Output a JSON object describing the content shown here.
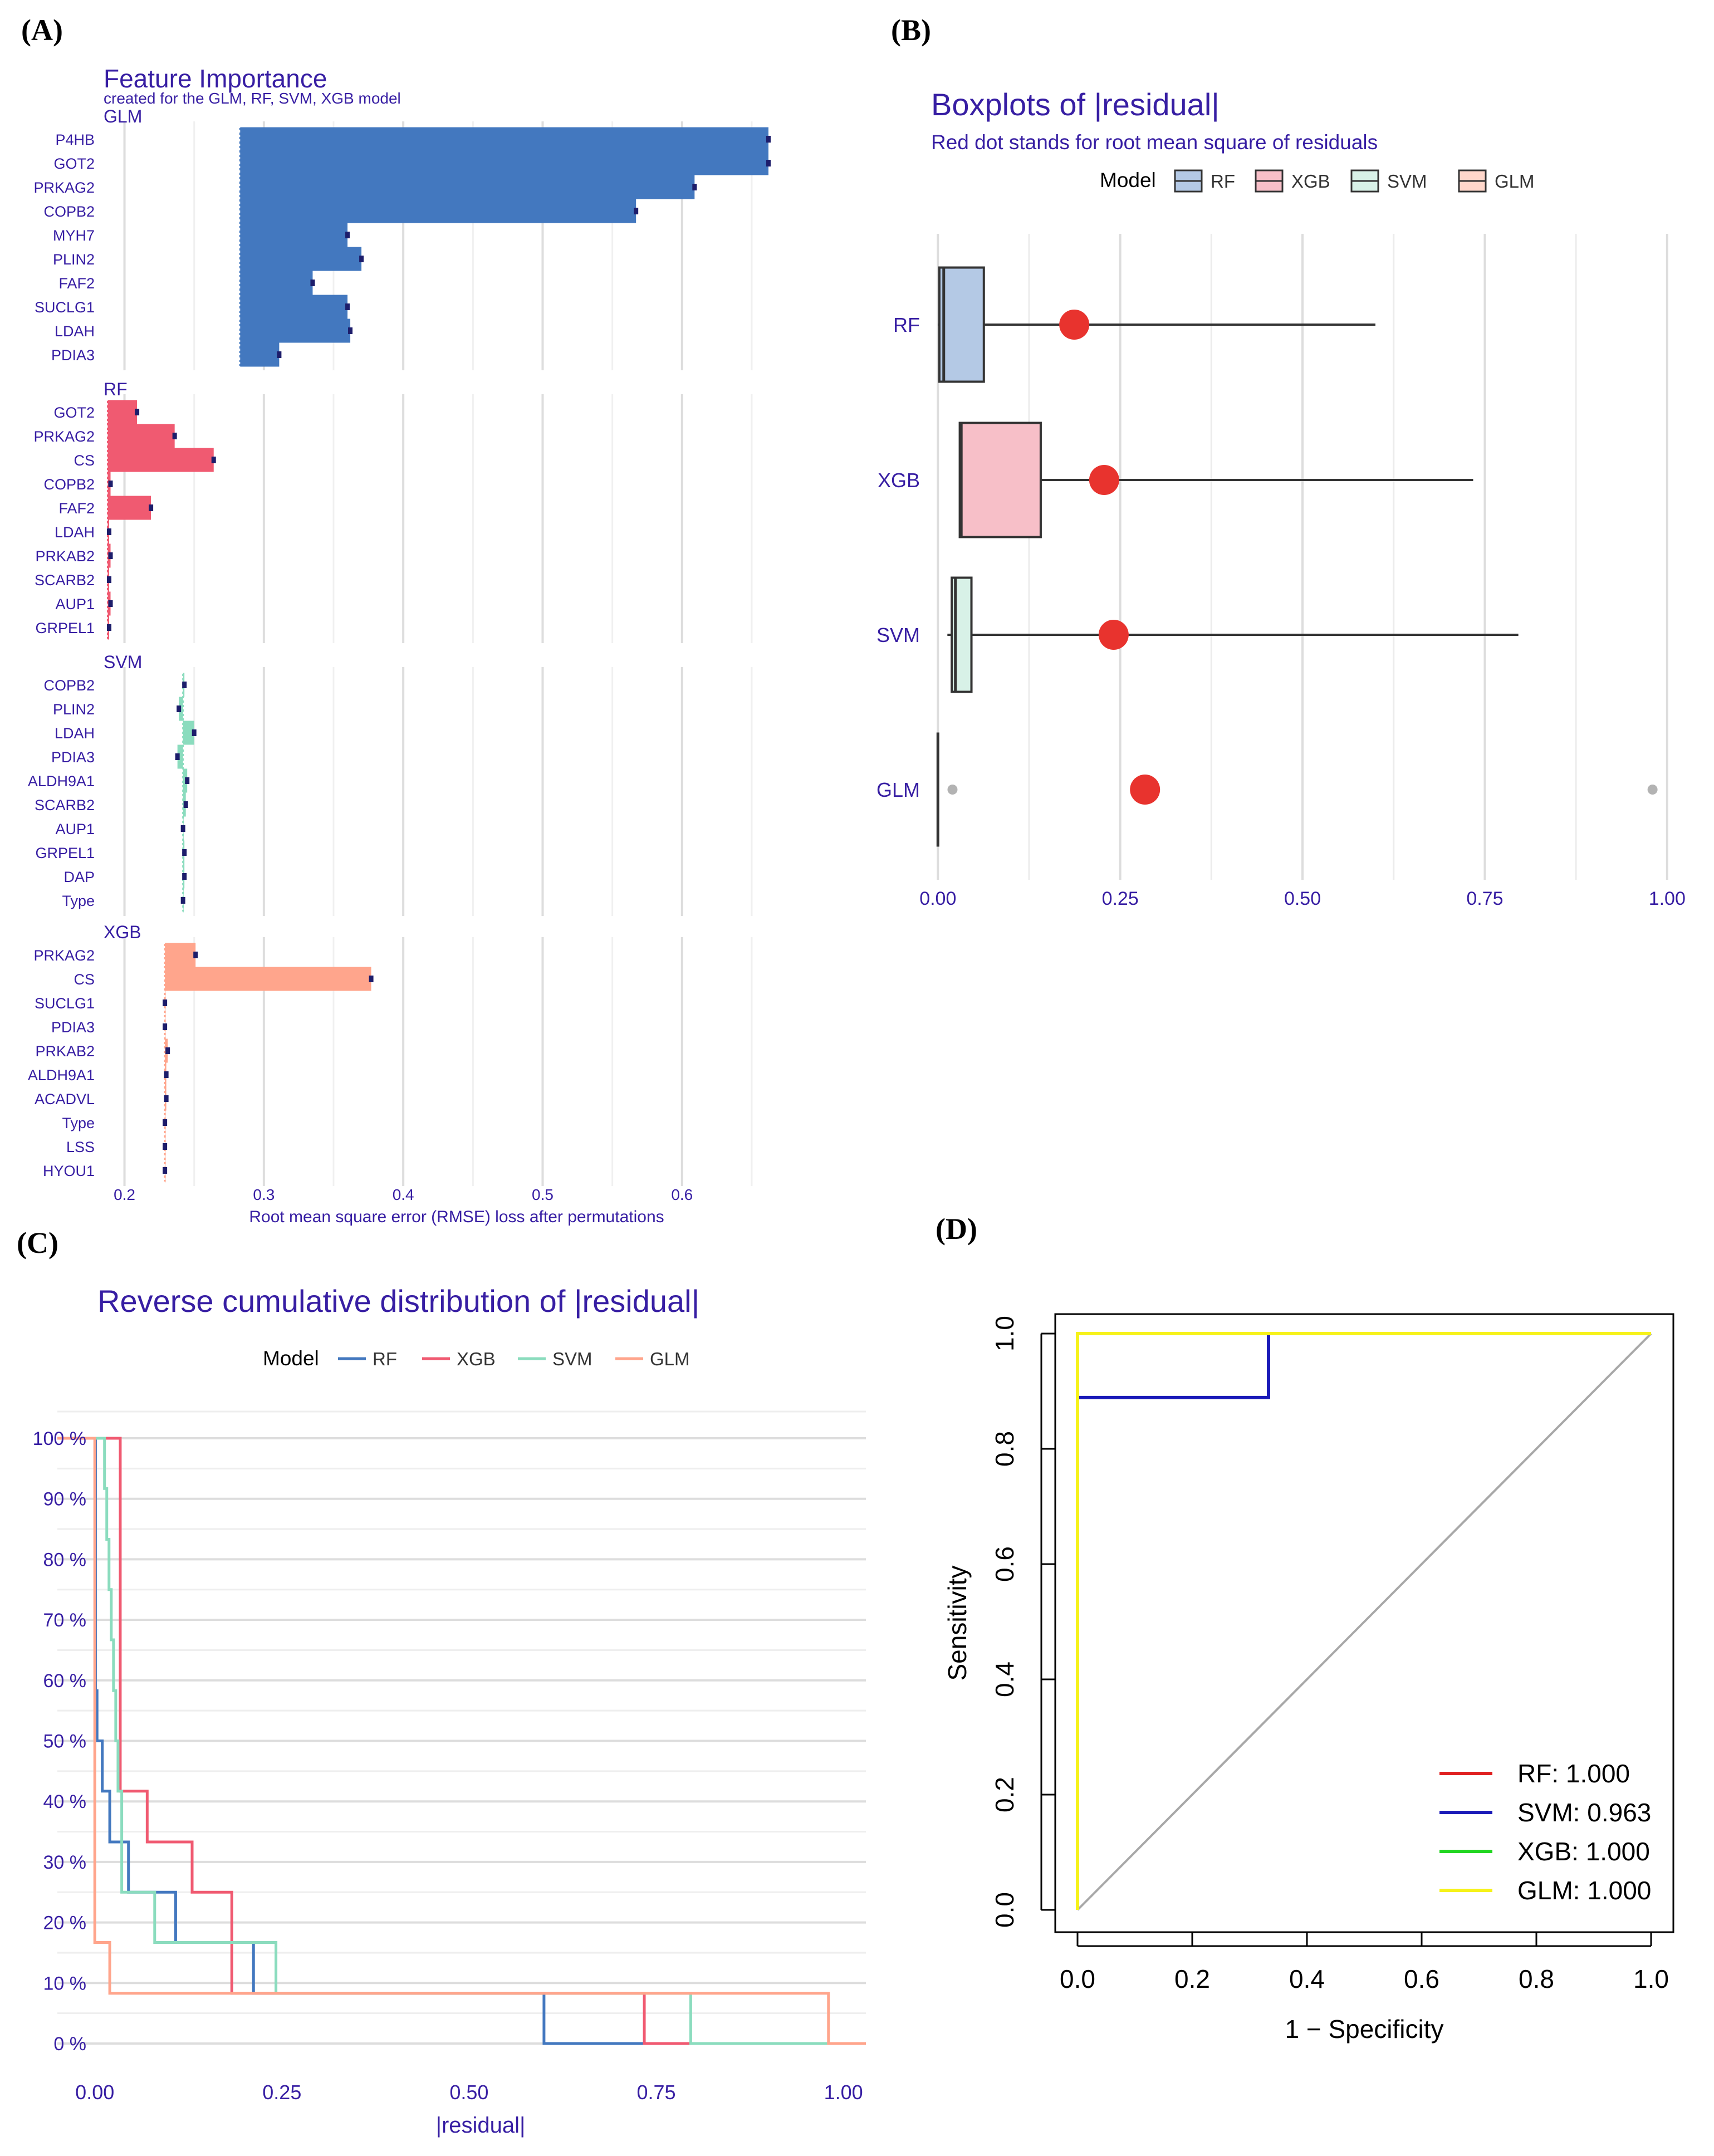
{
  "panel_labels": [
    "(A)",
    "(B)",
    "(C)",
    "(D)"
  ],
  "colors": {
    "RF": "#4378bf",
    "XGB": "#f05a71",
    "SVM": "#8bdcbe",
    "GLM": "#ffa58c",
    "title": "#371ea3",
    "grid": "#dddddd",
    "red_dot": "#e8332e"
  },
  "chart_data": [
    {
      "panel": "A",
      "type": "bar",
      "title": "Feature Importance",
      "subtitle": "created for the GLM, RF, SVM, XGB model",
      "xlabel": "Root mean square error (RMSE) loss after permutations",
      "xlim": [
        0.185,
        0.67
      ],
      "xticks": [
        0.2,
        0.3,
        0.4,
        0.5,
        0.6
      ],
      "xtick_labels": [
        "0.2",
        "0.3",
        "0.4",
        "0.5",
        "0.6"
      ],
      "panels": [
        {
          "name": "GLM",
          "color": "#4378bf",
          "baseline": 0.283,
          "features": [
            "P4HB",
            "GOT2",
            "PRKAG2",
            "COPB2",
            "MYH7",
            "PLIN2",
            "FAF2",
            "SUCLG1",
            "LDAH",
            "PDIA3"
          ],
          "values": [
            0.662,
            0.662,
            0.609,
            0.567,
            0.36,
            0.37,
            0.335,
            0.36,
            0.362,
            0.311
          ]
        },
        {
          "name": "RF",
          "color": "#f05a71",
          "baseline": 0.188,
          "features": [
            "GOT2",
            "PRKAG2",
            "CS",
            "COPB2",
            "FAF2",
            "LDAH",
            "PRKAB2",
            "SCARB2",
            "AUP1",
            "GRPEL1"
          ],
          "values": [
            0.209,
            0.236,
            0.264,
            0.19,
            0.219,
            0.189,
            0.19,
            0.189,
            0.19,
            0.189
          ]
        },
        {
          "name": "SVM",
          "color": "#8bdcbe",
          "baseline": 0.242,
          "features": [
            "COPB2",
            "PLIN2",
            "LDAH",
            "PDIA3",
            "ALDH9A1",
            "SCARB2",
            "AUP1",
            "GRPEL1",
            "DAP",
            "Type"
          ],
          "values": [
            0.243,
            0.239,
            0.25,
            0.238,
            0.245,
            0.244,
            0.242,
            0.243,
            0.243,
            0.242
          ]
        },
        {
          "name": "XGB",
          "color": "#ffa58c",
          "baseline": 0.229,
          "features": [
            "PRKAG2",
            "CS",
            "SUCLG1",
            "PDIA3",
            "PRKAB2",
            "ALDH9A1",
            "ACADVL",
            "Type",
            "LSS",
            "HYOU1"
          ],
          "values": [
            0.251,
            0.377,
            0.229,
            0.229,
            0.231,
            0.23,
            0.23,
            0.229,
            0.229,
            0.229
          ]
        }
      ]
    },
    {
      "panel": "B",
      "type": "boxplot",
      "title": "Boxplots of |residual|",
      "subtitle": "Red dot stands for root mean square of residuals",
      "legend_title": "Model",
      "categories": [
        "RF",
        "XGB",
        "SVM",
        "GLM"
      ],
      "xlim": [
        -0.03,
        1.02
      ],
      "xticks": [
        0,
        0.25,
        0.5,
        0.75,
        1.0
      ],
      "xtick_labels": [
        "0.00",
        "0.25",
        "0.50",
        "0.75",
        "1.00"
      ],
      "series": [
        {
          "name": "RF",
          "fill": "#b4c9e5",
          "min": 0.0,
          "q1": 0.002,
          "median": 0.008,
          "q3": 0.063,
          "max": 0.6,
          "rmse": 0.187,
          "outliers": []
        },
        {
          "name": "XGB",
          "fill": "#f7bfc8",
          "min": 0.03,
          "q1": 0.03,
          "median": 0.032,
          "q3": 0.141,
          "max": 0.734,
          "rmse": 0.228,
          "outliers": []
        },
        {
          "name": "SVM",
          "fill": "#d8f1e7",
          "min": 0.013,
          "q1": 0.019,
          "median": 0.024,
          "q3": 0.046,
          "max": 0.796,
          "rmse": 0.241,
          "outliers": []
        },
        {
          "name": "GLM",
          "fill": "#ffd7cb",
          "min": 0.0,
          "q1": 0.0,
          "median": 0.0,
          "q3": 0.0,
          "max": 0.0,
          "rmse": 0.284,
          "outliers": [
            0.02,
            0.98
          ]
        }
      ]
    },
    {
      "panel": "C",
      "type": "line",
      "title": "Reverse cumulative distribution of |residual|",
      "legend_title": "Model",
      "xlabel": "|residual|",
      "xlim": [
        -0.05,
        1.03
      ],
      "ylim": [
        0,
        100
      ],
      "xticks": [
        0,
        0.25,
        0.5,
        0.75,
        1.0
      ],
      "xtick_labels": [
        "0.00",
        "0.25",
        "0.50",
        "0.75",
        "1.00"
      ],
      "yticks": [
        0,
        10,
        20,
        30,
        40,
        50,
        60,
        70,
        80,
        90,
        100
      ],
      "ytick_labels": [
        "0 %",
        "10 %",
        "20 %",
        "30 %",
        "40 %",
        "50 %",
        "60 %",
        "70 %",
        "80 %",
        "90 %",
        "100 %"
      ],
      "series": [
        {
          "name": "RF",
          "x": [
            -0.05,
            0.0,
            0.001,
            0.003,
            0.005,
            0.01,
            0.02,
            0.045,
            0.108,
            0.212,
            0.6,
            0.6,
            1.03
          ],
          "y": [
            100,
            100,
            58.3,
            50,
            50,
            41.7,
            33.3,
            25,
            16.7,
            8.3,
            8.3,
            0,
            0
          ]
        },
        {
          "name": "XGB",
          "x": [
            -0.05,
            0.03,
            0.034,
            0.07,
            0.13,
            0.183,
            0.734,
            0.734,
            1.03
          ],
          "y": [
            100,
            100,
            41.7,
            33.3,
            25,
            8.3,
            8.3,
            0,
            0
          ]
        },
        {
          "name": "SVM",
          "x": [
            -0.05,
            0.013,
            0.016,
            0.019,
            0.022,
            0.025,
            0.028,
            0.031,
            0.036,
            0.08,
            0.242,
            0.796,
            0.796,
            1.03
          ],
          "y": [
            100,
            91.7,
            83.3,
            75,
            66.7,
            58.3,
            50,
            41.7,
            25,
            16.7,
            8.3,
            8.3,
            0,
            0
          ]
        },
        {
          "name": "GLM",
          "x": [
            -0.05,
            0.0,
            0.02,
            0.98,
            0.98,
            1.03
          ],
          "y": [
            100,
            16.7,
            8.3,
            8.3,
            0,
            0
          ]
        }
      ]
    },
    {
      "panel": "D",
      "type": "line",
      "title": "",
      "xlabel": "1 − Specificity",
      "ylabel": "Sensitivity",
      "xlim": [
        -0.04,
        1.04
      ],
      "ylim": [
        -0.04,
        1.04
      ],
      "xticks": [
        0,
        0.2,
        0.4,
        0.6,
        0.8,
        1.0
      ],
      "xtick_labels": [
        "0.0",
        "0.2",
        "0.4",
        "0.6",
        "0.8",
        "1.0"
      ],
      "yticks": [
        0,
        0.2,
        0.4,
        0.6,
        0.8,
        1.0
      ],
      "ytick_labels": [
        "0.0",
        "0.2",
        "0.4",
        "0.6",
        "0.8",
        "1.0"
      ],
      "legend": [
        "RF: 1.000",
        "SVM: 0.963",
        "XGB: 1.000",
        "GLM: 1.000"
      ],
      "legend_colors": [
        "#e02020",
        "#1a1ab8",
        "#22d622",
        "#f6f21a"
      ],
      "series": [
        {
          "name": "RF",
          "color": "#e02020",
          "x": [
            0,
            0,
            1
          ],
          "y": [
            0,
            1,
            1
          ]
        },
        {
          "name": "XGB",
          "color": "#22d622",
          "x": [
            0,
            0,
            1
          ],
          "y": [
            0,
            1,
            1
          ]
        },
        {
          "name": "SVM",
          "color": "#1a1ab8",
          "x": [
            0,
            0,
            0.333,
            0.333,
            1
          ],
          "y": [
            0,
            0.889,
            0.889,
            1,
            1
          ]
        },
        {
          "name": "GLM",
          "color": "#f6f21a",
          "x": [
            0,
            0,
            1
          ],
          "y": [
            0,
            1,
            1
          ]
        }
      ],
      "reference_line": {
        "x": [
          0,
          1
        ],
        "y": [
          0,
          1
        ],
        "color": "#a8a8a8"
      }
    }
  ]
}
